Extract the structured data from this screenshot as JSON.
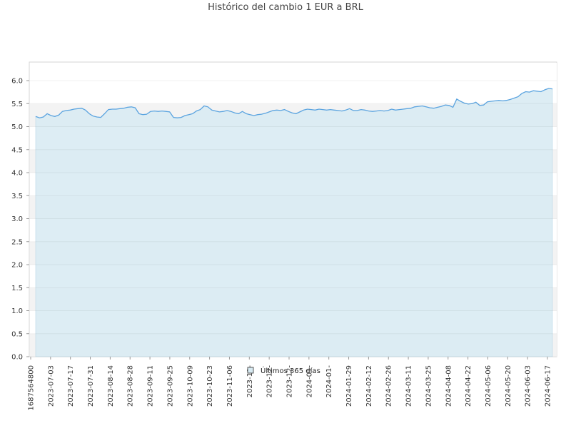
{
  "chart_data": {
    "type": "area",
    "title": "Histórico del cambio 1 EUR a BRL",
    "xlabel": "",
    "ylabel": "",
    "ylim": [
      0,
      6.0
    ],
    "y_ticks": [
      "0.0",
      "0.5",
      "1.0",
      "1.5",
      "2.0",
      "2.5",
      "3.0",
      "3.5",
      "4.0",
      "4.5",
      "5.0",
      "5.5",
      "6.0"
    ],
    "x_ticks": [
      "1687564800",
      "2023-07-03",
      "2023-07-17",
      "2023-07-31",
      "2023-08-14",
      "2023-08-28",
      "2023-09-11",
      "2023-09-25",
      "2023-10-09",
      "2023-10-23",
      "2023-11-06",
      "2023-11-",
      "2023-12-",
      "2023-12-",
      "2024-01-",
      "2024-01-",
      "2024-01-29",
      "2024-02-12",
      "2024-02-26",
      "2024-03-11",
      "2024-03-25",
      "2024-04-08",
      "2024-04-22",
      "2024-05-06",
      "2024-05-20",
      "2024-06-03",
      "2024-06-17"
    ],
    "grid": true,
    "legend_position": "bottom-center",
    "series": [
      {
        "name": "Últimos 365 días",
        "color": "#5ba4e0",
        "fill": "#d7eaf2",
        "values": [
          5.22,
          5.19,
          5.21,
          5.28,
          5.24,
          5.22,
          5.25,
          5.33,
          5.35,
          5.36,
          5.38,
          5.39,
          5.4,
          5.36,
          5.28,
          5.23,
          5.21,
          5.2,
          5.28,
          5.37,
          5.38,
          5.38,
          5.39,
          5.4,
          5.42,
          5.43,
          5.41,
          5.28,
          5.26,
          5.27,
          5.33,
          5.34,
          5.33,
          5.34,
          5.33,
          5.32,
          5.2,
          5.19,
          5.2,
          5.24,
          5.26,
          5.28,
          5.34,
          5.37,
          5.45,
          5.43,
          5.36,
          5.34,
          5.32,
          5.33,
          5.35,
          5.33,
          5.3,
          5.28,
          5.33,
          5.28,
          5.26,
          5.24,
          5.26,
          5.27,
          5.29,
          5.32,
          5.35,
          5.36,
          5.35,
          5.37,
          5.33,
          5.3,
          5.28,
          5.32,
          5.36,
          5.38,
          5.37,
          5.36,
          5.38,
          5.37,
          5.36,
          5.37,
          5.36,
          5.35,
          5.34,
          5.36,
          5.39,
          5.35,
          5.35,
          5.37,
          5.36,
          5.34,
          5.33,
          5.34,
          5.35,
          5.34,
          5.35,
          5.38,
          5.36,
          5.37,
          5.38,
          5.39,
          5.4,
          5.43,
          5.44,
          5.45,
          5.43,
          5.41,
          5.4,
          5.42,
          5.44,
          5.47,
          5.46,
          5.42,
          5.6,
          5.55,
          5.51,
          5.49,
          5.5,
          5.53,
          5.46,
          5.47,
          5.54,
          5.55,
          5.56,
          5.57,
          5.56,
          5.57,
          5.59,
          5.62,
          5.65,
          5.72,
          5.76,
          5.75,
          5.78,
          5.77,
          5.76,
          5.8,
          5.83,
          5.82
        ]
      }
    ]
  }
}
